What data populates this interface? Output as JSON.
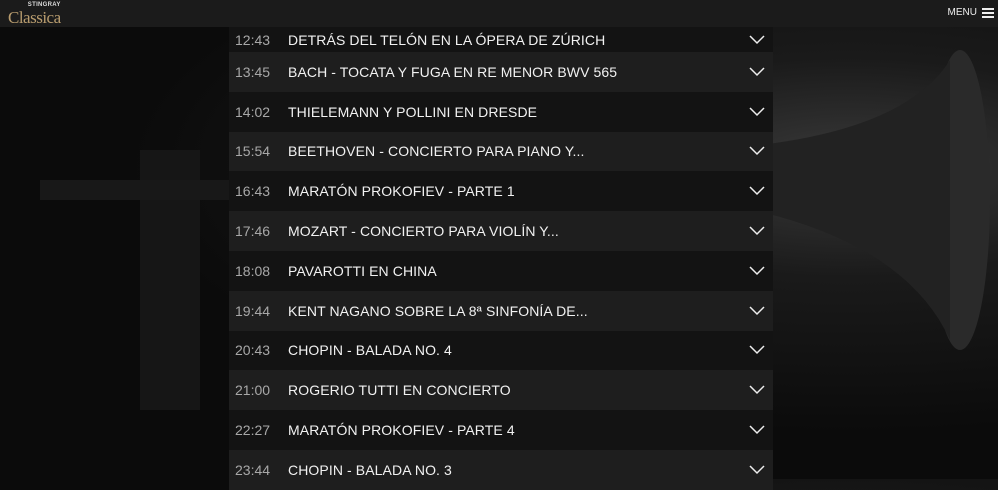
{
  "header": {
    "logo_top": "STINGRAY",
    "logo_main": "Classica",
    "menu_label": "MENU"
  },
  "schedule": [
    {
      "time": "12:43",
      "title": "DETRÁS DEL TELÓN EN LA ÓPERA DE ZÚRICH"
    },
    {
      "time": "13:45",
      "title": "BACH - TOCATA Y FUGA EN RE MENOR BWV 565"
    },
    {
      "time": "14:02",
      "title": "THIELEMANN Y POLLINI EN DRESDE"
    },
    {
      "time": "15:54",
      "title": "BEETHOVEN - CONCIERTO PARA PIANO Y..."
    },
    {
      "time": "16:43",
      "title": "MARATÓN PROKOFIEV - PARTE 1"
    },
    {
      "time": "17:46",
      "title": "MOZART - CONCIERTO PARA VIOLÍN Y..."
    },
    {
      "time": "18:08",
      "title": "PAVAROTTI EN CHINA"
    },
    {
      "time": "19:44",
      "title": "KENT NAGANO SOBRE LA 8ª SINFONÍA DE..."
    },
    {
      "time": "20:43",
      "title": "CHOPIN - BALADA NO. 4"
    },
    {
      "time": "21:00",
      "title": "ROGERIO TUTTI EN CONCIERTO"
    },
    {
      "time": "22:27",
      "title": "MARATÓN PROKOFIEV - PARTE 4"
    },
    {
      "time": "23:44",
      "title": "CHOPIN - BALADA NO. 3"
    }
  ]
}
